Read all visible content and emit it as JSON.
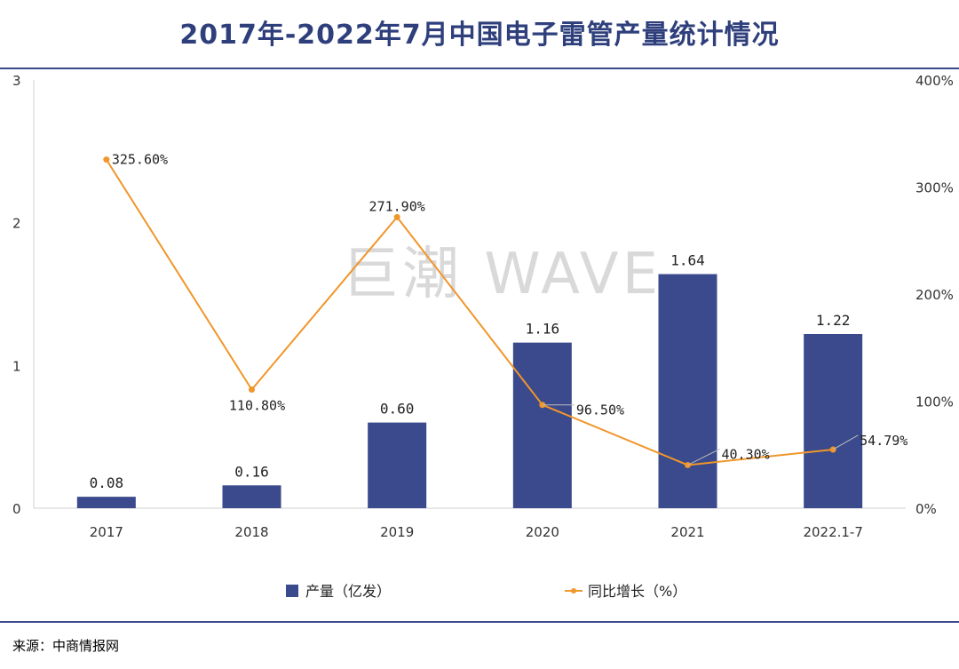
{
  "title": "2017年-2022年7月中国电子雷管产量统计情况",
  "watermark": "巨潮 WAVE",
  "source": "来源：中商情报网",
  "colors": {
    "bar": "#3a4a8c",
    "line": "#f0962a",
    "title": "#2e3f7c",
    "rule": "#3a4a8c"
  },
  "chart_data": {
    "type": "bar+line",
    "categories": [
      "2017",
      "2018",
      "2019",
      "2020",
      "2021",
      "2022.1-7"
    ],
    "series": [
      {
        "name": "产量（亿发）",
        "type": "bar",
        "axis": "left",
        "values": [
          0.08,
          0.16,
          0.6,
          1.16,
          1.64,
          1.22
        ],
        "labels": [
          "0.08",
          "0.16",
          "0.60",
          "1.16",
          "1.64",
          "1.22"
        ]
      },
      {
        "name": "同比增长（%）",
        "type": "line",
        "axis": "right",
        "values": [
          325.6,
          110.8,
          271.9,
          96.5,
          40.3,
          54.79
        ],
        "labels": [
          "325.60%",
          "110.80%",
          "271.90%",
          "96.50%",
          "40.30%",
          "54.79%"
        ]
      }
    ],
    "y_left": {
      "range": [
        0,
        3
      ],
      "ticks": [
        "0",
        "1",
        "2",
        "3"
      ]
    },
    "y_right": {
      "range": [
        0,
        400
      ],
      "ticks": [
        "0%",
        "100%",
        "200%",
        "300%",
        "400%"
      ]
    },
    "grid": false,
    "legend": "bottom"
  }
}
